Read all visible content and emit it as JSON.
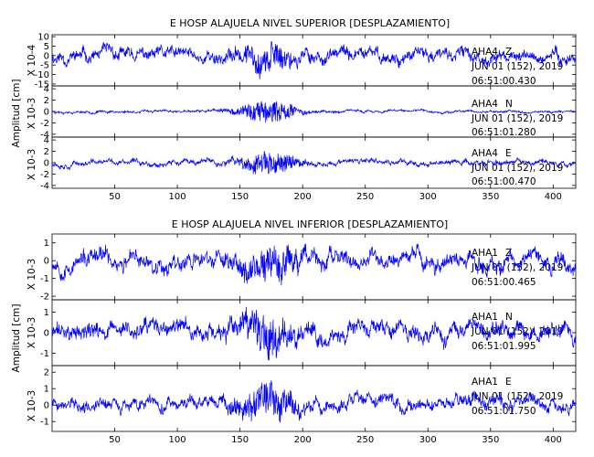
{
  "chart_data": [
    {
      "type": "line",
      "title": "E HOSP ALAJUELA NIVEL SUPERIOR [DESPLAZAMIENTO]",
      "ylabel": "Amplitud [cm]",
      "xlim": [
        0,
        418
      ],
      "x_ticks": [
        "50",
        "100",
        "150",
        "200",
        "250",
        "300",
        "350",
        "400"
      ],
      "line_color": "#0000ff",
      "panels": [
        {
          "scale_label": "X 10-4",
          "ylim": [
            -16,
            11
          ],
          "y_ticks": [
            "10",
            "5",
            "0",
            "-5",
            "-10",
            "-15"
          ],
          "station": "AHA4",
          "component": "Z",
          "date": "JUN 01 (152), 2019",
          "time": "06:51:00.430",
          "amplitude": {
            "noise": 2.5,
            "burst": 9,
            "burst_center": 171,
            "burst_width": 20
          },
          "waveform_seed": 11
        },
        {
          "scale_label": "X 10-3",
          "ylim": [
            -4.5,
            4.5
          ],
          "y_ticks": [
            "4",
            "2",
            "0",
            "-2",
            "-4"
          ],
          "station": "AHA4",
          "component": "N",
          "date": "JUN 01 (152), 2019",
          "time": "06:51:01.280",
          "amplitude": {
            "noise": 0.15,
            "burst": 3.8,
            "burst_center": 172,
            "burst_width": 22
          },
          "waveform_seed": 23
        },
        {
          "scale_label": "X 10-3",
          "ylim": [
            -4.5,
            4.5
          ],
          "y_ticks": [
            "4",
            "2",
            "0",
            "-2",
            "-4"
          ],
          "station": "AHA4",
          "component": "E",
          "date": "JUN 01 (152), 2019",
          "time": "06:51:00.470",
          "amplitude": {
            "noise": 0.35,
            "burst": 3.8,
            "burst_center": 172,
            "burst_width": 20
          },
          "waveform_seed": 37
        }
      ]
    },
    {
      "type": "line",
      "title": "E HOSP ALAJUELA NIVEL INFERIOR [DESPLAZAMIENTO]",
      "ylabel": "Amplitud [cm]",
      "xlim": [
        0,
        418
      ],
      "x_ticks": [
        "50",
        "100",
        "150",
        "200",
        "250",
        "300",
        "350",
        "400"
      ],
      "line_color": "#0000ff",
      "panels": [
        {
          "scale_label": "X 10-3",
          "ylim": [
            -2.2,
            1.5
          ],
          "y_ticks": [
            "1",
            "0",
            "-1",
            "-2"
          ],
          "station": "AHA1",
          "component": "Z",
          "date": "JUN 01 (152), 2019",
          "time": "06:51:00.465",
          "amplitude": {
            "noise": 0.35,
            "burst": 1.2,
            "burst_center": 172,
            "burst_width": 25
          },
          "waveform_seed": 53
        },
        {
          "scale_label": "X 10-3",
          "ylim": [
            -1.6,
            1.6
          ],
          "y_ticks": [
            "1",
            "0",
            "-1"
          ],
          "station": "AHA1",
          "component": "N",
          "date": "JUN 01 (152), 2019",
          "time": "06:51:01.995",
          "amplitude": {
            "noise": 0.3,
            "burst": 1.3,
            "burst_center": 172,
            "burst_width": 22
          },
          "waveform_seed": 71
        },
        {
          "scale_label": "X 10-3",
          "ylim": [
            -1.6,
            2.4
          ],
          "y_ticks": [
            "2",
            "1",
            "0",
            "-1"
          ],
          "station": "AHA1",
          "component": "E",
          "date": "JUN 01 (152), 2019",
          "time": "06:51:01.750",
          "amplitude": {
            "noise": 0.3,
            "burst": 1.5,
            "burst_center": 172,
            "burst_width": 22
          },
          "waveform_seed": 89
        }
      ]
    }
  ]
}
